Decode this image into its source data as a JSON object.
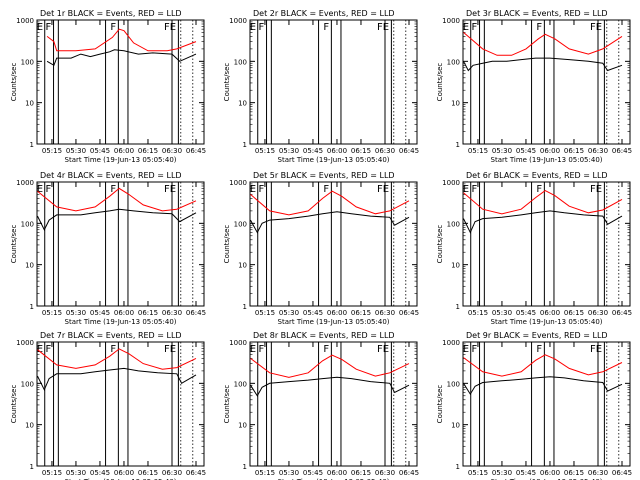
{
  "chart_data": {
    "type": "line",
    "scale": "log",
    "ylim": [
      1,
      1000
    ],
    "ylabel": "Counts/sec",
    "xlabel": "Start Time (19-Jun-13 05:05:40)",
    "x_ticks": [
      "05:15",
      "05:30",
      "05:45",
      "06:00",
      "06:15",
      "06:30",
      "06:45"
    ],
    "y_ticks": [
      "1",
      "10",
      "100",
      "1000"
    ],
    "series_colors": {
      "events": "#000000",
      "lld": "#ff0000"
    },
    "x_time_range": [
      "05:05:40",
      "06:50:00"
    ],
    "marker_label_E": "E",
    "marker_label_F": "F",
    "marker_label_FE": "FE",
    "panels": [
      {
        "title": "Det  1r BLACK = Events, RED = LLD",
        "markers": [
          {
            "t": "05:10:30",
            "label": "E"
          },
          {
            "t": "05:16:00",
            "label": "F"
          },
          {
            "t": "05:56:30",
            "label": "F"
          },
          {
            "t": "06:30:00",
            "label": "FE"
          }
        ],
        "data_red": [
          [
            5.2,
            400
          ],
          [
            5.27,
            300
          ],
          [
            5.3,
            180
          ],
          [
            5.5,
            180
          ],
          [
            5.7,
            200
          ],
          [
            5.88,
            380
          ],
          [
            5.95,
            600
          ],
          [
            6.0,
            550
          ],
          [
            6.1,
            280
          ],
          [
            6.25,
            180
          ],
          [
            6.45,
            180
          ],
          [
            6.55,
            200
          ],
          [
            6.75,
            300
          ]
        ],
        "data_black": [
          [
            5.2,
            100
          ],
          [
            5.27,
            80
          ],
          [
            5.3,
            120
          ],
          [
            5.45,
            120
          ],
          [
            5.55,
            150
          ],
          [
            5.65,
            130
          ],
          [
            5.75,
            150
          ],
          [
            5.85,
            170
          ],
          [
            5.9,
            190
          ],
          [
            6.0,
            180
          ],
          [
            6.15,
            150
          ],
          [
            6.3,
            160
          ],
          [
            6.5,
            150
          ],
          [
            6.58,
            100
          ],
          [
            6.75,
            150
          ]
        ]
      },
      {
        "title": "Det  2r BLACK = Events, RED = LLD",
        "markers": [
          {
            "t": "05:10:30",
            "label": "E"
          },
          {
            "t": "05:16:00",
            "label": "F"
          },
          {
            "t": "05:56:30",
            "label": "F"
          },
          {
            "t": "06:30:00",
            "label": "FE"
          }
        ],
        "data_red": [],
        "data_black": []
      },
      {
        "title": "Det  3r BLACK = Events, RED = LLD",
        "markers": [
          {
            "t": "05:10:30",
            "label": "E"
          },
          {
            "t": "05:16:00",
            "label": "F"
          },
          {
            "t": "05:56:30",
            "label": "F"
          },
          {
            "t": "06:30:00",
            "label": "FE"
          }
        ],
        "data_red": [
          [
            5.1,
            500
          ],
          [
            5.3,
            200
          ],
          [
            5.45,
            140
          ],
          [
            5.6,
            140
          ],
          [
            5.75,
            200
          ],
          [
            5.88,
            350
          ],
          [
            5.95,
            450
          ],
          [
            6.05,
            350
          ],
          [
            6.2,
            200
          ],
          [
            6.4,
            150
          ],
          [
            6.55,
            200
          ],
          [
            6.75,
            400
          ]
        ],
        "data_black": [
          [
            5.1,
            100
          ],
          [
            5.15,
            60
          ],
          [
            5.2,
            80
          ],
          [
            5.3,
            90
          ],
          [
            5.4,
            100
          ],
          [
            5.55,
            100
          ],
          [
            5.7,
            110
          ],
          [
            5.85,
            120
          ],
          [
            6.0,
            120
          ],
          [
            6.2,
            110
          ],
          [
            6.4,
            100
          ],
          [
            6.55,
            90
          ],
          [
            6.6,
            60
          ],
          [
            6.75,
            80
          ]
        ]
      },
      {
        "title": "Det  4r BLACK = Events, RED = LLD",
        "markers": [
          {
            "t": "05:10:30",
            "label": "E"
          },
          {
            "t": "05:16:00",
            "label": "F"
          },
          {
            "t": "05:56:30",
            "label": "F"
          },
          {
            "t": "06:30:00",
            "label": "FE"
          }
        ],
        "data_red": [
          [
            5.1,
            600
          ],
          [
            5.3,
            250
          ],
          [
            5.5,
            200
          ],
          [
            5.7,
            250
          ],
          [
            5.85,
            450
          ],
          [
            5.95,
            700
          ],
          [
            6.05,
            500
          ],
          [
            6.2,
            280
          ],
          [
            6.4,
            200
          ],
          [
            6.55,
            220
          ],
          [
            6.75,
            350
          ]
        ],
        "data_black": [
          [
            5.1,
            150
          ],
          [
            5.17,
            70
          ],
          [
            5.22,
            120
          ],
          [
            5.3,
            160
          ],
          [
            5.55,
            160
          ],
          [
            5.7,
            180
          ],
          [
            5.85,
            200
          ],
          [
            5.95,
            220
          ],
          [
            6.1,
            200
          ],
          [
            6.3,
            180
          ],
          [
            6.5,
            170
          ],
          [
            6.58,
            110
          ],
          [
            6.75,
            180
          ]
        ]
      },
      {
        "title": "Det  5r BLACK = Events, RED = LLD",
        "markers": [
          {
            "t": "05:10:30",
            "label": "E"
          },
          {
            "t": "05:16:00",
            "label": "F"
          },
          {
            "t": "05:56:30",
            "label": "F"
          },
          {
            "t": "06:30:00",
            "label": "FE"
          }
        ],
        "data_red": [
          [
            5.1,
            500
          ],
          [
            5.3,
            200
          ],
          [
            5.5,
            160
          ],
          [
            5.7,
            200
          ],
          [
            5.85,
            400
          ],
          [
            5.95,
            600
          ],
          [
            6.05,
            450
          ],
          [
            6.2,
            250
          ],
          [
            6.4,
            170
          ],
          [
            6.55,
            200
          ],
          [
            6.75,
            350
          ]
        ],
        "data_black": [
          [
            5.1,
            120
          ],
          [
            5.17,
            60
          ],
          [
            5.22,
            100
          ],
          [
            5.3,
            120
          ],
          [
            5.5,
            130
          ],
          [
            5.7,
            150
          ],
          [
            5.85,
            170
          ],
          [
            6.0,
            190
          ],
          [
            6.15,
            170
          ],
          [
            6.35,
            150
          ],
          [
            6.55,
            140
          ],
          [
            6.6,
            90
          ],
          [
            6.75,
            140
          ]
        ]
      },
      {
        "title": "Det  6r BLACK = Events, RED = LLD",
        "markers": [
          {
            "t": "05:10:30",
            "label": "E"
          },
          {
            "t": "05:16:00",
            "label": "F"
          },
          {
            "t": "05:56:30",
            "label": "F"
          },
          {
            "t": "06:30:00",
            "label": "FE"
          }
        ],
        "data_red": [
          [
            5.1,
            550
          ],
          [
            5.3,
            220
          ],
          [
            5.5,
            170
          ],
          [
            5.7,
            220
          ],
          [
            5.85,
            420
          ],
          [
            5.95,
            620
          ],
          [
            6.05,
            470
          ],
          [
            6.2,
            260
          ],
          [
            6.4,
            180
          ],
          [
            6.55,
            210
          ],
          [
            6.75,
            380
          ]
        ],
        "data_black": [
          [
            5.1,
            130
          ],
          [
            5.17,
            60
          ],
          [
            5.22,
            110
          ],
          [
            5.3,
            130
          ],
          [
            5.5,
            140
          ],
          [
            5.7,
            160
          ],
          [
            5.85,
            180
          ],
          [
            6.0,
            200
          ],
          [
            6.15,
            180
          ],
          [
            6.35,
            160
          ],
          [
            6.55,
            150
          ],
          [
            6.6,
            95
          ],
          [
            6.75,
            150
          ]
        ]
      },
      {
        "title": "Det  7r BLACK = Events, RED = LLD",
        "markers": [
          {
            "t": "05:10:30",
            "label": "E"
          },
          {
            "t": "05:16:00",
            "label": "F"
          },
          {
            "t": "05:56:30",
            "label": "F"
          },
          {
            "t": "06:30:00",
            "label": "FE"
          }
        ],
        "data_red": [
          [
            5.1,
            650
          ],
          [
            5.3,
            280
          ],
          [
            5.5,
            230
          ],
          [
            5.7,
            280
          ],
          [
            5.85,
            450
          ],
          [
            5.95,
            680
          ],
          [
            6.05,
            520
          ],
          [
            6.2,
            300
          ],
          [
            6.4,
            220
          ],
          [
            6.55,
            240
          ],
          [
            6.75,
            400
          ]
        ],
        "data_black": [
          [
            5.1,
            150
          ],
          [
            5.17,
            70
          ],
          [
            5.22,
            130
          ],
          [
            5.3,
            170
          ],
          [
            5.55,
            170
          ],
          [
            5.7,
            190
          ],
          [
            5.85,
            210
          ],
          [
            6.0,
            230
          ],
          [
            6.15,
            200
          ],
          [
            6.35,
            180
          ],
          [
            6.55,
            170
          ],
          [
            6.6,
            100
          ],
          [
            6.75,
            160
          ]
        ]
      },
      {
        "title": "Det  8r BLACK = Events, RED = LLD",
        "markers": [
          {
            "t": "05:10:30",
            "label": "E"
          },
          {
            "t": "05:16:00",
            "label": "F"
          },
          {
            "t": "05:56:30",
            "label": "F"
          },
          {
            "t": "06:30:00",
            "label": "FE"
          }
        ],
        "data_red": [
          [
            5.1,
            400
          ],
          [
            5.3,
            180
          ],
          [
            5.5,
            140
          ],
          [
            5.7,
            180
          ],
          [
            5.85,
            350
          ],
          [
            5.95,
            480
          ],
          [
            6.05,
            380
          ],
          [
            6.2,
            220
          ],
          [
            6.4,
            150
          ],
          [
            6.55,
            180
          ],
          [
            6.75,
            300
          ]
        ],
        "data_black": [
          [
            5.1,
            90
          ],
          [
            5.17,
            50
          ],
          [
            5.22,
            80
          ],
          [
            5.3,
            100
          ],
          [
            5.5,
            110
          ],
          [
            5.7,
            120
          ],
          [
            5.85,
            130
          ],
          [
            6.0,
            140
          ],
          [
            6.15,
            130
          ],
          [
            6.35,
            110
          ],
          [
            6.55,
            100
          ],
          [
            6.6,
            60
          ],
          [
            6.75,
            90
          ]
        ]
      },
      {
        "title": "Det  9r BLACK = Events, RED = LLD",
        "markers": [
          {
            "t": "05:10:30",
            "label": "E"
          },
          {
            "t": "05:16:00",
            "label": "F"
          },
          {
            "t": "05:56:30",
            "label": "F"
          },
          {
            "t": "06:30:00",
            "label": "FE"
          }
        ],
        "data_red": [
          [
            5.1,
            420
          ],
          [
            5.3,
            190
          ],
          [
            5.5,
            150
          ],
          [
            5.7,
            190
          ],
          [
            5.85,
            360
          ],
          [
            5.95,
            490
          ],
          [
            6.05,
            390
          ],
          [
            6.2,
            230
          ],
          [
            6.4,
            160
          ],
          [
            6.55,
            190
          ],
          [
            6.75,
            320
          ]
        ],
        "data_black": [
          [
            5.1,
            100
          ],
          [
            5.17,
            55
          ],
          [
            5.22,
            85
          ],
          [
            5.3,
            105
          ],
          [
            5.5,
            115
          ],
          [
            5.7,
            125
          ],
          [
            5.85,
            135
          ],
          [
            6.0,
            145
          ],
          [
            6.15,
            135
          ],
          [
            6.35,
            115
          ],
          [
            6.55,
            105
          ],
          [
            6.6,
            65
          ],
          [
            6.75,
            95
          ]
        ]
      }
    ]
  }
}
